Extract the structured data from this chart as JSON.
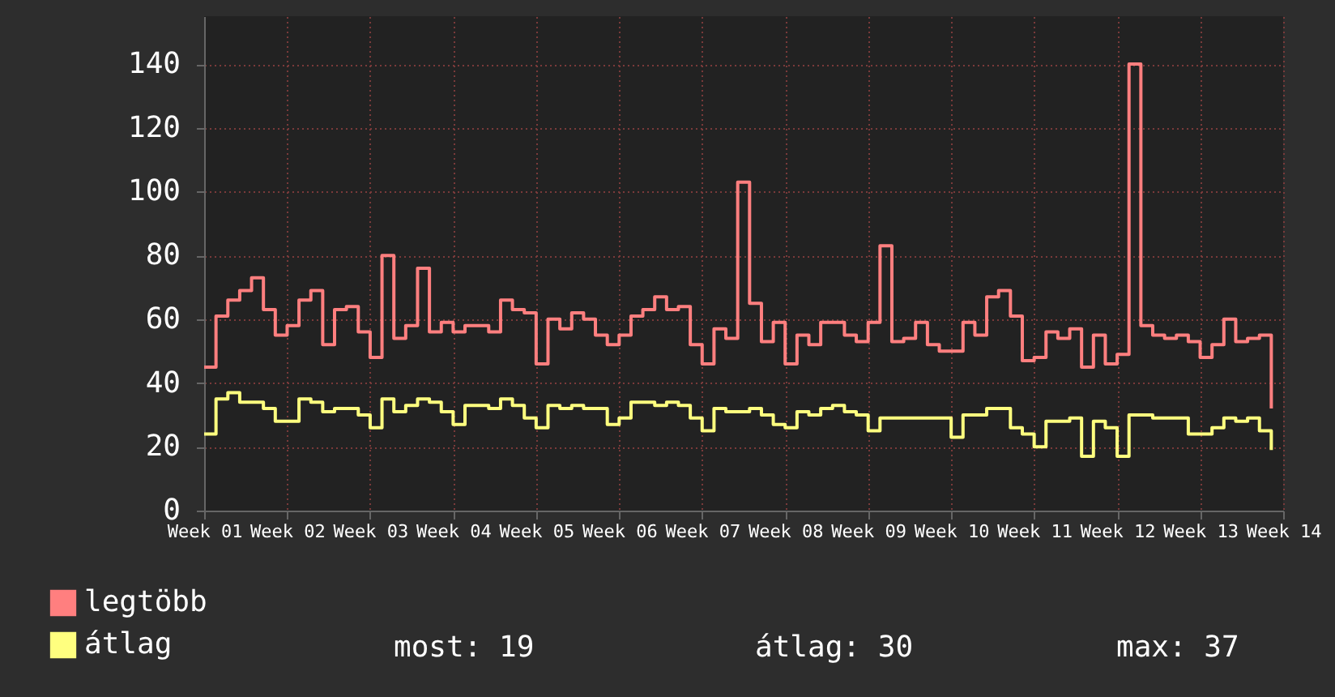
{
  "chart_data": {
    "type": "step",
    "legend": "bottom left",
    "grid": true,
    "categories": [
      "Week 01",
      null,
      null,
      null,
      null,
      null,
      null,
      "Week 02",
      null,
      null,
      null,
      null,
      null,
      null,
      "Week 03",
      null,
      null,
      null,
      null,
      null,
      null,
      "Week 04",
      null,
      null,
      null,
      null,
      null,
      null,
      "Week 05",
      null,
      null,
      null,
      null,
      null,
      null,
      "Week 06",
      null,
      null,
      null,
      null,
      null,
      null,
      "Week 07",
      null,
      null,
      null,
      null,
      null,
      null,
      "Week 08",
      null,
      null,
      null,
      null,
      null,
      null,
      "Week 09",
      null,
      null,
      null,
      null,
      null,
      null,
      "Week 10",
      null,
      null,
      null,
      null,
      null,
      null,
      "Week 11",
      null,
      null,
      null,
      null,
      null,
      null,
      "Week 12",
      null,
      null,
      null,
      null,
      null,
      null,
      "Week 13",
      null,
      null,
      null,
      null,
      null,
      null,
      "Week 14"
    ],
    "ylim": [
      0,
      155
    ],
    "yticks": [
      0,
      20,
      40,
      60,
      80,
      100,
      120,
      140
    ],
    "series": [
      {
        "name": "legtöbb",
        "color": "#ff7f7f",
        "values": [
          45,
          61,
          66,
          69,
          73,
          63,
          55,
          58,
          66,
          69,
          52,
          63,
          64,
          56,
          48,
          80,
          54,
          58,
          76,
          56,
          59,
          56,
          58,
          58,
          56,
          66,
          63,
          62,
          46,
          60,
          57,
          62,
          60,
          55,
          52,
          55,
          61,
          63,
          67,
          63,
          64,
          52,
          46,
          57,
          54,
          103,
          65,
          53,
          59,
          46,
          55,
          52,
          59,
          59,
          55,
          53,
          59,
          83,
          53,
          54,
          59,
          52,
          50,
          50,
          59,
          55,
          67,
          69,
          61,
          47,
          48,
          56,
          54,
          57,
          45,
          55,
          46,
          49,
          140,
          58,
          55,
          54,
          55,
          53,
          48,
          52,
          60,
          53,
          54,
          55,
          32,
          null
        ]
      },
      {
        "name": "átlag",
        "color": "#ffff7f",
        "values": [
          24,
          35,
          37,
          34,
          34,
          32,
          28,
          28,
          35,
          34,
          31,
          32,
          32,
          30,
          26,
          35,
          31,
          33,
          35,
          34,
          31,
          27,
          33,
          33,
          32,
          35,
          33,
          29,
          26,
          33,
          32,
          33,
          32,
          32,
          27,
          29,
          34,
          34,
          33,
          34,
          33,
          29,
          25,
          32,
          31,
          31,
          32,
          30,
          27,
          26,
          31,
          30,
          32,
          33,
          31,
          30,
          25,
          29,
          29,
          29,
          29,
          29,
          29,
          23,
          30,
          30,
          32,
          32,
          26,
          24,
          20,
          28,
          28,
          29,
          17,
          28,
          26,
          17,
          30,
          30,
          29,
          29,
          29,
          24,
          24,
          26,
          29,
          28,
          29,
          25,
          19,
          null
        ]
      }
    ],
    "annotations": [
      "most: 19",
      "átlag: 30",
      "max: 37"
    ]
  }
}
